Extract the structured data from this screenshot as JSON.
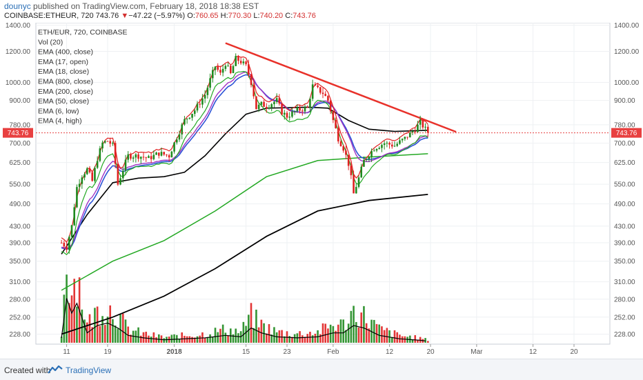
{
  "header": {
    "user": "dounyc",
    "published_text": "published on TradingView.com, February 18, 2018 18:38 EST",
    "symbol": "COINBASE:ETHEUR, 720",
    "last": "743.76",
    "arrow": "▼",
    "change": "−47.22 (−5.97%)",
    "open_label": "O:",
    "open": "760.65",
    "high_label": "H:",
    "high": "770.30",
    "low_label": "L:",
    "low": "740.20",
    "close_label": "C:",
    "close": "743.76"
  },
  "legend": [
    "ETH/EUR, 720, COINBASE",
    "Vol (20)",
    "EMA (400, close)",
    "EMA (17, open)",
    "EMA (18, close)",
    "EMA (800, close)",
    "EMA (200, close)",
    "EMA (50, close)",
    "EMA (6, low)",
    "EMA (4, high)"
  ],
  "footer": {
    "created_with": "Created with",
    "brand": "TradingView"
  },
  "colors": {
    "up": "#1e8a1e",
    "down": "#e02020",
    "trendline": "#e8312a",
    "ema_black": "#000000",
    "ema_green": "#22a822",
    "ema_blue": "#2b52d6",
    "ema_purple": "#a033c4",
    "price_line": "#e84040"
  },
  "chart_data": {
    "type": "candlestick",
    "price_scale": "log",
    "ylim": [
      215,
      1420
    ],
    "y_ticks": [
      "1400.00",
      "1200.00",
      "1000.00",
      "900.00",
      "780.00",
      "700.00",
      "625.00",
      "550.00",
      "490.00",
      "430.00",
      "390.00",
      "350.00",
      "310.00",
      "280.00",
      "252.00",
      "228.00"
    ],
    "x_ticks": [
      {
        "label": "11",
        "day": 11
      },
      {
        "label": "19",
        "day": 19
      },
      {
        "label": "2018",
        "day": 32
      },
      {
        "label": "15",
        "day": 46
      },
      {
        "label": "23",
        "day": 54
      },
      {
        "label": "Feb",
        "day": 63
      },
      {
        "label": "12",
        "day": 74
      },
      {
        "label": "20",
        "day": 82
      },
      {
        "label": "Mar",
        "day": 91
      },
      {
        "label": "12",
        "day": 102
      },
      {
        "label": "20",
        "day": 110
      }
    ],
    "last_price": 743.76,
    "price_points": [
      {
        "day": 10,
        "price": 390
      },
      {
        "day": 11,
        "price": 380
      },
      {
        "day": 12,
        "price": 430
      },
      {
        "day": 13,
        "price": 540
      },
      {
        "day": 14,
        "price": 580
      },
      {
        "day": 15,
        "price": 600
      },
      {
        "day": 16,
        "price": 560
      },
      {
        "day": 17,
        "price": 640
      },
      {
        "day": 18,
        "price": 700
      },
      {
        "day": 19,
        "price": 710
      },
      {
        "day": 20,
        "price": 690
      },
      {
        "day": 21,
        "price": 550
      },
      {
        "day": 22,
        "price": 600
      },
      {
        "day": 23,
        "price": 650
      },
      {
        "day": 25,
        "price": 650
      },
      {
        "day": 27,
        "price": 640
      },
      {
        "day": 29,
        "price": 660
      },
      {
        "day": 31,
        "price": 650
      },
      {
        "day": 32,
        "price": 700
      },
      {
        "day": 34,
        "price": 800
      },
      {
        "day": 36,
        "price": 850
      },
      {
        "day": 38,
        "price": 930
      },
      {
        "day": 40,
        "price": 1100
      },
      {
        "day": 41,
        "price": 1050
      },
      {
        "day": 42,
        "price": 1120
      },
      {
        "day": 43,
        "price": 1050
      },
      {
        "day": 44,
        "price": 1150
      },
      {
        "day": 45,
        "price": 1130
      },
      {
        "day": 46,
        "price": 1100
      },
      {
        "day": 47,
        "price": 1000
      },
      {
        "day": 48,
        "price": 860
      },
      {
        "day": 49,
        "price": 880
      },
      {
        "day": 50,
        "price": 870
      },
      {
        "day": 52,
        "price": 900
      },
      {
        "day": 53,
        "price": 840
      },
      {
        "day": 54,
        "price": 820
      },
      {
        "day": 56,
        "price": 850
      },
      {
        "day": 58,
        "price": 860
      },
      {
        "day": 59,
        "price": 980
      },
      {
        "day": 61,
        "price": 940
      },
      {
        "day": 62,
        "price": 900
      },
      {
        "day": 63,
        "price": 800
      },
      {
        "day": 64,
        "price": 720
      },
      {
        "day": 65,
        "price": 680
      },
      {
        "day": 66,
        "price": 620
      },
      {
        "day": 67,
        "price": 520
      },
      {
        "day": 68,
        "price": 570
      },
      {
        "day": 69,
        "price": 630
      },
      {
        "day": 71,
        "price": 680
      },
      {
        "day": 73,
        "price": 700
      },
      {
        "day": 75,
        "price": 690
      },
      {
        "day": 77,
        "price": 720
      },
      {
        "day": 79,
        "price": 760
      },
      {
        "day": 80,
        "price": 790
      },
      {
        "day": 81,
        "price": 760
      },
      {
        "day": 81.5,
        "price": 743.76
      }
    ],
    "volume_points": [
      {
        "day": 10,
        "v": 0.1
      },
      {
        "day": 11,
        "v": 0.9
      },
      {
        "day": 12,
        "v": 0.6
      },
      {
        "day": 13,
        "v": 0.8
      },
      {
        "day": 14,
        "v": 0.5
      },
      {
        "day": 15,
        "v": 0.2
      },
      {
        "day": 17,
        "v": 0.35
      },
      {
        "day": 19,
        "v": 0.4
      },
      {
        "day": 21,
        "v": 0.3
      },
      {
        "day": 23,
        "v": 0.15
      },
      {
        "day": 26,
        "v": 0.1
      },
      {
        "day": 30,
        "v": 0.06
      },
      {
        "day": 34,
        "v": 0.08
      },
      {
        "day": 38,
        "v": 0.1
      },
      {
        "day": 42,
        "v": 0.15
      },
      {
        "day": 45,
        "v": 0.12
      },
      {
        "day": 47,
        "v": 0.3
      },
      {
        "day": 49,
        "v": 0.2
      },
      {
        "day": 52,
        "v": 0.12
      },
      {
        "day": 56,
        "v": 0.1
      },
      {
        "day": 60,
        "v": 0.12
      },
      {
        "day": 63,
        "v": 0.2
      },
      {
        "day": 65,
        "v": 0.2
      },
      {
        "day": 67,
        "v": 0.35
      },
      {
        "day": 69,
        "v": 0.3
      },
      {
        "day": 72,
        "v": 0.15
      },
      {
        "day": 76,
        "v": 0.08
      },
      {
        "day": 80,
        "v": 0.05
      },
      {
        "day": 81.5,
        "v": 0.03
      }
    ],
    "trendline": {
      "start": {
        "day": 42,
        "price": 1260
      },
      "end": {
        "day": 87,
        "price": 748
      }
    },
    "ema_long_black": [
      {
        "day": 10,
        "price": 228
      },
      {
        "day": 20,
        "price": 252
      },
      {
        "day": 30,
        "price": 285
      },
      {
        "day": 40,
        "price": 335
      },
      {
        "day": 50,
        "price": 405
      },
      {
        "day": 60,
        "price": 470
      },
      {
        "day": 70,
        "price": 500
      },
      {
        "day": 81.5,
        "price": 518
      }
    ],
    "ema_long_green": [
      {
        "day": 10,
        "price": 295
      },
      {
        "day": 20,
        "price": 350
      },
      {
        "day": 30,
        "price": 395
      },
      {
        "day": 40,
        "price": 470
      },
      {
        "day": 50,
        "price": 575
      },
      {
        "day": 60,
        "price": 632
      },
      {
        "day": 70,
        "price": 645
      },
      {
        "day": 81.5,
        "price": 658
      }
    ],
    "ema_mid_black": [
      {
        "day": 10,
        "price": 365
      },
      {
        "day": 15,
        "price": 460
      },
      {
        "day": 20,
        "price": 555
      },
      {
        "day": 25,
        "price": 570
      },
      {
        "day": 30,
        "price": 575
      },
      {
        "day": 34,
        "price": 590
      },
      {
        "day": 38,
        "price": 650
      },
      {
        "day": 42,
        "price": 740
      },
      {
        "day": 46,
        "price": 830
      },
      {
        "day": 50,
        "price": 860
      },
      {
        "day": 54,
        "price": 862
      },
      {
        "day": 58,
        "price": 865
      },
      {
        "day": 62,
        "price": 860
      },
      {
        "day": 66,
        "price": 800
      },
      {
        "day": 70,
        "price": 760
      },
      {
        "day": 75,
        "price": 750
      },
      {
        "day": 81.5,
        "price": 755
      }
    ]
  }
}
